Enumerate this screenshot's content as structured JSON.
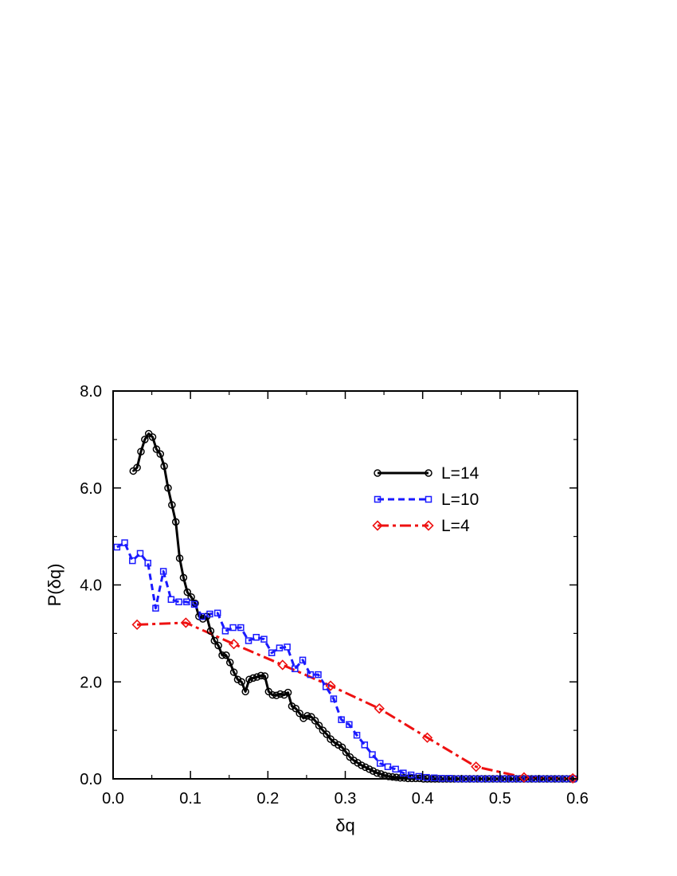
{
  "chart_data": {
    "type": "line",
    "xlabel": "δq",
    "ylabel": "P(δq)",
    "xlim": [
      0.0,
      0.6
    ],
    "ylim": [
      0.0,
      8.0
    ],
    "xticks": [
      0.0,
      0.1,
      0.2,
      0.3,
      0.4,
      0.5,
      0.6
    ],
    "yticks": [
      0.0,
      2.0,
      4.0,
      6.0,
      8.0
    ],
    "xtick_labels": [
      "0.0",
      "0.1",
      "0.2",
      "0.3",
      "0.4",
      "0.5",
      "0.6"
    ],
    "ytick_labels": [
      "0.0",
      "2.0",
      "4.0",
      "6.0",
      "8.0"
    ],
    "grid": false,
    "legend_position": "top-right",
    "series": [
      {
        "name": "L=14",
        "color": "#000000",
        "marker": "circle",
        "line_style": "solid",
        "x": [
          0.026,
          0.031,
          0.036,
          0.041,
          0.046,
          0.051,
          0.056,
          0.061,
          0.066,
          0.071,
          0.076,
          0.081,
          0.086,
          0.091,
          0.096,
          0.101,
          0.106,
          0.111,
          0.116,
          0.121,
          0.126,
          0.131,
          0.136,
          0.141,
          0.146,
          0.151,
          0.156,
          0.161,
          0.166,
          0.171,
          0.176,
          0.181,
          0.186,
          0.191,
          0.196,
          0.201,
          0.206,
          0.211,
          0.216,
          0.221,
          0.226,
          0.231,
          0.236,
          0.241,
          0.246,
          0.251,
          0.256,
          0.261,
          0.266,
          0.271,
          0.276,
          0.281,
          0.286,
          0.291,
          0.296,
          0.301,
          0.306,
          0.311,
          0.316,
          0.321,
          0.326,
          0.331,
          0.336,
          0.341,
          0.346,
          0.351,
          0.356,
          0.361,
          0.366,
          0.371,
          0.376,
          0.381,
          0.386,
          0.391,
          0.396,
          0.401,
          0.406,
          0.411,
          0.416,
          0.421,
          0.426,
          0.431,
          0.436,
          0.441,
          0.446,
          0.451,
          0.456,
          0.461,
          0.466,
          0.471,
          0.476,
          0.481,
          0.486,
          0.491,
          0.496,
          0.501,
          0.506,
          0.511,
          0.516,
          0.521,
          0.526,
          0.531,
          0.536,
          0.541,
          0.546,
          0.551,
          0.556,
          0.561,
          0.566,
          0.571,
          0.576,
          0.581,
          0.586,
          0.591,
          0.596
        ],
        "y": [
          6.35,
          6.42,
          6.75,
          7.0,
          7.12,
          7.05,
          6.8,
          6.7,
          6.45,
          6.0,
          5.65,
          5.3,
          4.55,
          4.15,
          3.85,
          3.75,
          3.62,
          3.35,
          3.3,
          3.35,
          3.05,
          2.85,
          2.75,
          2.55,
          2.55,
          2.4,
          2.2,
          2.05,
          2.0,
          1.8,
          2.05,
          2.08,
          2.1,
          2.13,
          2.12,
          1.8,
          1.73,
          1.72,
          1.75,
          1.73,
          1.78,
          1.5,
          1.45,
          1.35,
          1.25,
          1.3,
          1.28,
          1.2,
          1.1,
          1.0,
          0.92,
          0.82,
          0.75,
          0.7,
          0.65,
          0.55,
          0.45,
          0.38,
          0.33,
          0.28,
          0.24,
          0.2,
          0.16,
          0.12,
          0.1,
          0.07,
          0.05,
          0.04,
          0.03,
          0.02,
          0.02,
          0.01,
          0.01,
          0.01,
          0.01,
          0.0,
          0.0,
          0.0,
          0.0,
          0.0,
          0.0,
          0.0,
          0.0,
          0.0,
          0.0,
          0.0,
          0.0,
          0.0,
          0.0,
          0.0,
          0.0,
          0.0,
          0.0,
          0.0,
          0.0,
          0.0,
          0.0,
          0.0,
          0.0,
          0.0,
          0.0,
          0.0,
          0.0,
          0.0,
          0.0,
          0.0,
          0.0,
          0.0,
          0.0,
          0.0,
          0.0,
          0.0,
          0.0,
          0.0,
          0.0
        ]
      },
      {
        "name": "L=10",
        "color": "#1a1aff",
        "marker": "square",
        "line_style": "dashed",
        "x": [
          0.005,
          0.015,
          0.025,
          0.035,
          0.045,
          0.055,
          0.065,
          0.075,
          0.085,
          0.095,
          0.105,
          0.115,
          0.125,
          0.135,
          0.145,
          0.155,
          0.165,
          0.175,
          0.185,
          0.195,
          0.205,
          0.215,
          0.225,
          0.235,
          0.245,
          0.255,
          0.265,
          0.275,
          0.285,
          0.295,
          0.305,
          0.315,
          0.325,
          0.335,
          0.345,
          0.355,
          0.365,
          0.375,
          0.385,
          0.395,
          0.405,
          0.415,
          0.425,
          0.435,
          0.445,
          0.455,
          0.465,
          0.475,
          0.485,
          0.495,
          0.505,
          0.515,
          0.525,
          0.535,
          0.545,
          0.555,
          0.565,
          0.575,
          0.585,
          0.595
        ],
        "y": [
          4.78,
          4.87,
          4.5,
          4.65,
          4.45,
          3.52,
          4.28,
          3.7,
          3.65,
          3.65,
          3.6,
          3.35,
          3.4,
          3.42,
          3.05,
          3.12,
          3.12,
          2.85,
          2.92,
          2.88,
          2.6,
          2.7,
          2.72,
          2.27,
          2.45,
          2.15,
          2.15,
          1.9,
          1.65,
          1.22,
          1.12,
          0.9,
          0.7,
          0.5,
          0.32,
          0.25,
          0.2,
          0.12,
          0.08,
          0.05,
          0.03,
          0.02,
          0.01,
          0.01,
          0.0,
          0.0,
          0.0,
          0.0,
          0.0,
          0.0,
          0.0,
          0.0,
          0.0,
          0.0,
          0.0,
          0.0,
          0.0,
          0.0,
          0.0,
          0.0
        ]
      },
      {
        "name": "L=4",
        "color": "#ee1111",
        "marker": "diamond",
        "line_style": "dash-dot",
        "x": [
          0.031,
          0.094,
          0.156,
          0.219,
          0.281,
          0.344,
          0.406,
          0.469,
          0.531,
          0.594
        ],
        "y": [
          3.18,
          3.22,
          2.78,
          2.35,
          1.92,
          1.45,
          0.85,
          0.25,
          0.03,
          0.01
        ]
      }
    ]
  }
}
